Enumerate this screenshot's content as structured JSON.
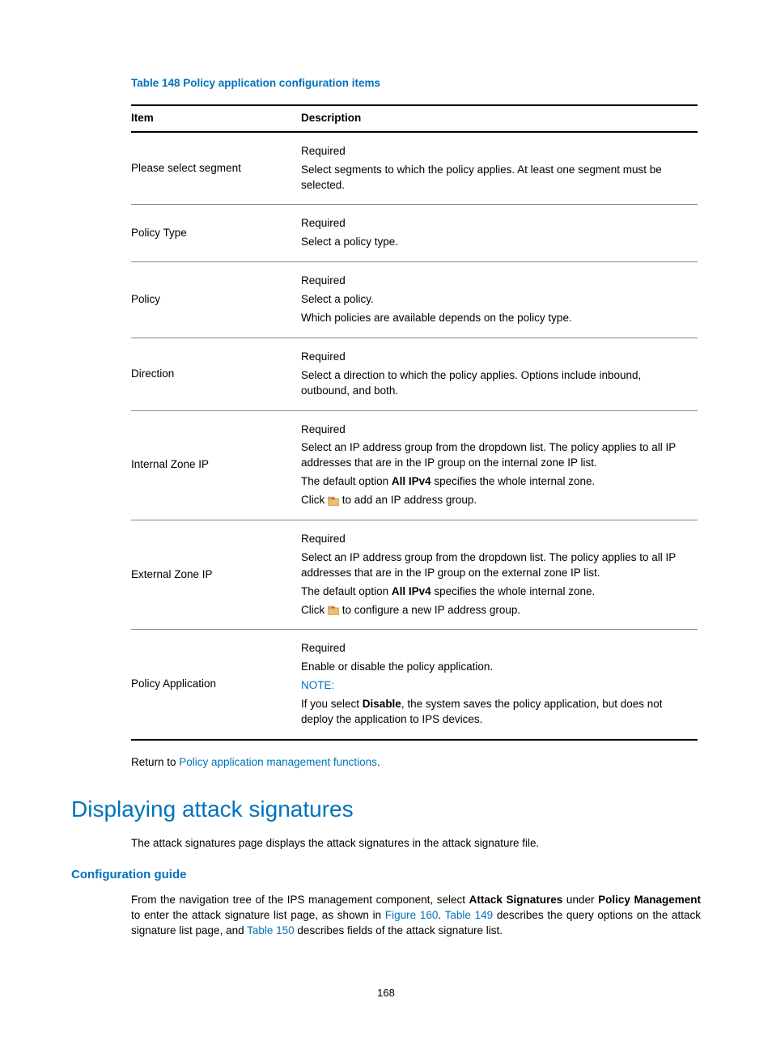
{
  "table": {
    "caption": "Table 148 Policy application configuration items",
    "columns": [
      "Item",
      "Description"
    ],
    "rows": [
      {
        "item": "Please select segment",
        "lines": [
          {
            "type": "plain",
            "text": "Required"
          },
          {
            "type": "plain",
            "text": "Select segments to which the policy applies. At least one segment must be selected."
          }
        ]
      },
      {
        "item": "Policy Type",
        "lines": [
          {
            "type": "plain",
            "text": "Required"
          },
          {
            "type": "plain",
            "text": "Select a policy type."
          }
        ]
      },
      {
        "item": "Policy",
        "lines": [
          {
            "type": "plain",
            "text": "Required"
          },
          {
            "type": "plain",
            "text": "Select a policy."
          },
          {
            "type": "plain",
            "text": "Which policies are available depends on the policy type."
          }
        ]
      },
      {
        "item": "Direction",
        "lines": [
          {
            "type": "plain",
            "text": "Required"
          },
          {
            "type": "plain",
            "text": "Select a direction to which the policy applies. Options include inbound, outbound, and both."
          }
        ]
      },
      {
        "item": "Internal Zone IP",
        "lines": [
          {
            "type": "plain",
            "text": "Required"
          },
          {
            "type": "plain",
            "text": "Select an IP address group from the dropdown list. The policy applies to all IP addresses that are in the IP group on the internal zone IP list."
          },
          {
            "type": "bold-span",
            "pre": "The default option ",
            "bold": "All IPv4",
            "post": " specifies the whole internal zone."
          },
          {
            "type": "icon",
            "pre": "Click ",
            "post": " to add an IP address group."
          }
        ]
      },
      {
        "item": "External Zone IP",
        "lines": [
          {
            "type": "plain",
            "text": "Required"
          },
          {
            "type": "plain",
            "text": "Select an IP address group from the dropdown list. The policy applies to all IP addresses that are in the IP group on the external zone IP list."
          },
          {
            "type": "bold-span",
            "pre": "The default option ",
            "bold": "All IPv4",
            "post": " specifies the whole internal zone."
          },
          {
            "type": "icon",
            "pre": "Click ",
            "post": " to configure a new IP address group."
          }
        ]
      },
      {
        "item": "Policy Application",
        "lines": [
          {
            "type": "plain",
            "text": "Required"
          },
          {
            "type": "plain",
            "text": "Enable or disable the policy application."
          },
          {
            "type": "note",
            "text": "NOTE:"
          },
          {
            "type": "bold-span",
            "pre": "If you select ",
            "bold": "Disable",
            "post": ", the system saves the policy application, but does not deploy the application to IPS devices."
          }
        ]
      }
    ]
  },
  "returnLine": {
    "pre": "Return to ",
    "link": "Policy application management functions",
    "post": "."
  },
  "sectionHeading": "Displaying attack signatures",
  "introText": "The attack signatures page displays the attack signatures in the attack signature file.",
  "subsectionHeading": "Configuration guide",
  "guideParagraph": {
    "segments": [
      {
        "type": "plain",
        "text": "From the navigation tree of the IPS management component, select "
      },
      {
        "type": "bold",
        "text": "Attack Signatures"
      },
      {
        "type": "plain",
        "text": " under "
      },
      {
        "type": "bold",
        "text": "Policy Management"
      },
      {
        "type": "plain",
        "text": " to enter the attack signature list page, as shown in "
      },
      {
        "type": "link",
        "text": "Figure 160"
      },
      {
        "type": "plain",
        "text": ". "
      },
      {
        "type": "link",
        "text": "Table 149"
      },
      {
        "type": "plain",
        "text": " describes the query options on the attack signature list page, and "
      },
      {
        "type": "link",
        "text": "Table 150"
      },
      {
        "type": "plain",
        "text": " describes fields of the attack signature list."
      }
    ]
  },
  "pageNumber": "168",
  "colors": {
    "accent": "#0073ba",
    "text": "#000000",
    "borderHeavy": "#000000",
    "borderLight": "#888888",
    "folderFill": "#e8c070",
    "folderStar": "#d05030"
  }
}
